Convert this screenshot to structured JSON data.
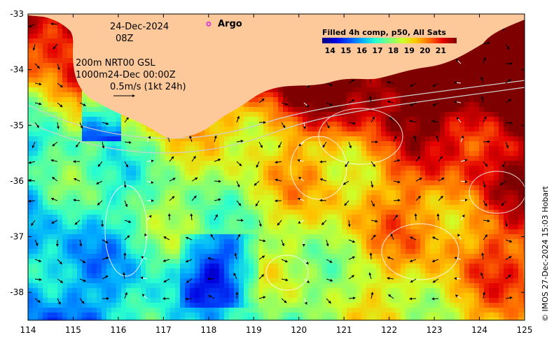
{
  "map": {
    "lon_range": [
      114,
      125
    ],
    "lat_range": [
      -38.5,
      -33
    ],
    "lon_ticks": [
      114,
      115,
      116,
      117,
      118,
      119,
      120,
      121,
      122,
      123,
      124,
      125
    ],
    "lat_ticks": [
      -33,
      -34,
      -35,
      -36,
      -37,
      -38
    ],
    "lon_tick_labels": [
      "114",
      "115",
      "116",
      "117",
      "118",
      "119",
      "120",
      "121",
      "122",
      "123",
      "124",
      "125"
    ],
    "lat_tick_labels": [
      "-33",
      "-34",
      "-35",
      "-36",
      "-37",
      "-38"
    ],
    "land_color": "#fdc99b"
  },
  "annotations": {
    "date": "24-Dec-2024",
    "time": "08Z",
    "line1": "200m  NRT00 GSL",
    "line2": "1000m24-Dec 00:00Z",
    "scale": "0.5m/s (1kt 24h)",
    "argo": "Argo"
  },
  "colorbar": {
    "title": "Filled 4h comp, p50, All Sats",
    "ticks": [
      14,
      15,
      16,
      17,
      18,
      19,
      20,
      21
    ],
    "tick_labels": [
      "14",
      "15",
      "16",
      "17",
      "18",
      "19",
      "20",
      "21"
    ],
    "range": [
      13.5,
      22
    ],
    "colors": [
      "#00007f",
      "#0000e0",
      "#0050ff",
      "#00b0ff",
      "#29ffce",
      "#7dff7a",
      "#ceff29",
      "#ffc400",
      "#ff6800",
      "#e40000",
      "#7f0000"
    ]
  },
  "credit": "© IMOS 27-Dec-2024 15:03 Hobart",
  "argo_float": {
    "lon": 118.0,
    "lat": -33.18,
    "color": "#e020e0"
  }
}
